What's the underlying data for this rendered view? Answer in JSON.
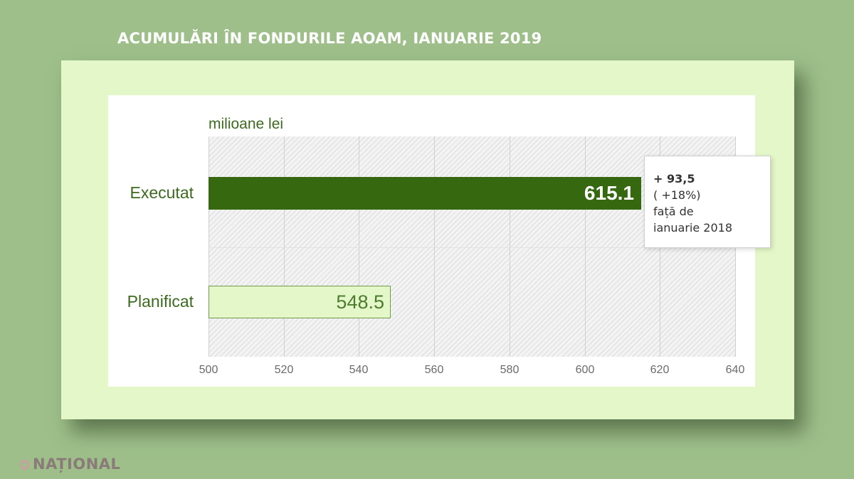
{
  "title": "ACUMULĂRI ÎN FONDURILE AOAM, IANUARIE 2019",
  "logo_text": "NAȚIONAL",
  "colors": {
    "background": "#9ebf8a",
    "card": "#e4f7c8",
    "executat_bar": "#35680f",
    "planificat_bar": "#e4f7c8",
    "text_green": "#3d6a1e"
  },
  "chart_data": {
    "type": "bar",
    "orientation": "horizontal",
    "unit_label": "milioane lei",
    "categories": [
      "Executat",
      "Planificat"
    ],
    "values": [
      615.1,
      548.5
    ],
    "value_labels": [
      "615.1",
      "548.5"
    ],
    "xlim": [
      500,
      640
    ],
    "xticks": [
      "500",
      "520",
      "540",
      "560",
      "580",
      "600",
      "620",
      "640"
    ],
    "grid": true,
    "annotation": {
      "heading": "+ 93,5",
      "lines": [
        "( +18%)",
        "față de",
        "ianuarie 2018"
      ]
    }
  }
}
